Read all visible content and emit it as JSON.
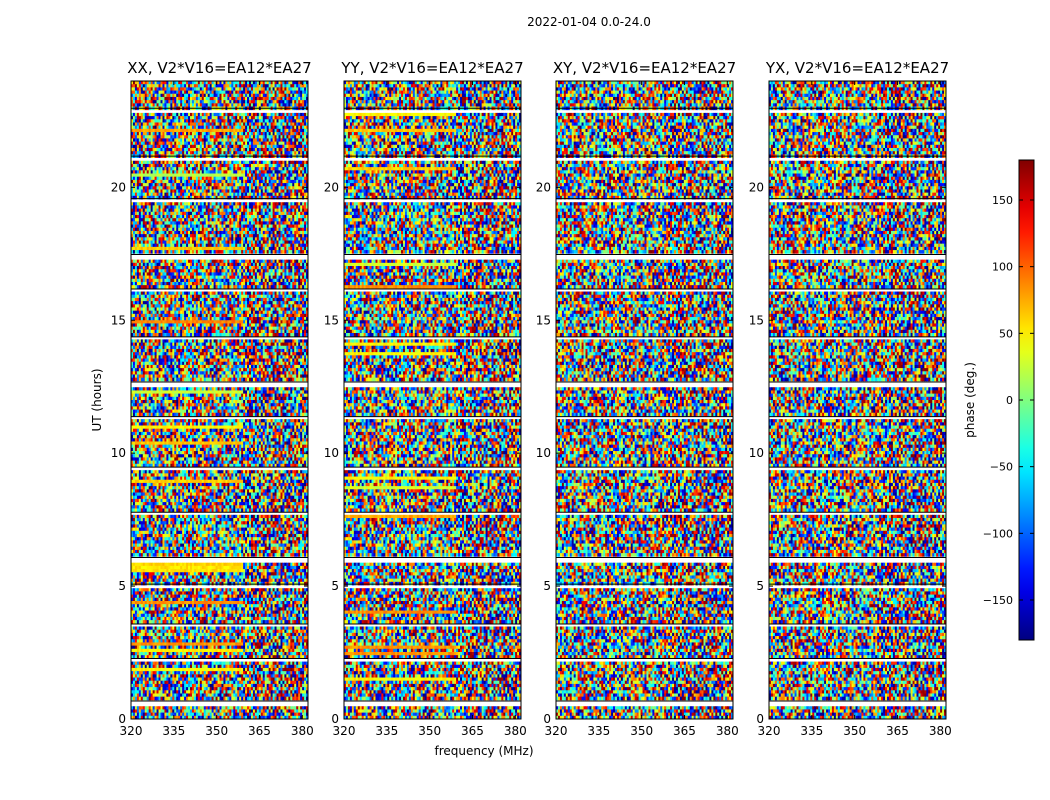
{
  "figure": {
    "suptitle": "2022-01-04 0.0-24.0",
    "xlabel": "frequency (MHz)",
    "ylabel": "UT (hours)"
  },
  "colorbar": {
    "label": "phase (deg.)",
    "range": [
      -180,
      180
    ],
    "ticks": [
      150,
      100,
      50,
      0,
      -50,
      -100,
      -150
    ],
    "tick_labels": [
      "150",
      "100",
      "50",
      "0",
      "−50",
      "−100",
      "−150"
    ],
    "colormap": "jet",
    "colors": [
      "#00007f",
      "#0000ff",
      "#007fff",
      "#00ffff",
      "#7fff7f",
      "#ffff00",
      "#ff7f00",
      "#ff0000",
      "#7f0000"
    ]
  },
  "chart_data": [
    {
      "type": "heatmap",
      "title": "XX, V2*V16=EA12*EA27",
      "xlim": [
        320,
        382
      ],
      "ylim": [
        0,
        24
      ],
      "xticks": [
        320,
        335,
        350,
        365,
        380
      ],
      "yticks": [
        0,
        5,
        10,
        15,
        20
      ],
      "xlabel": "",
      "ylabel": "UT (hours)",
      "value": "visibility phase (deg.), noise-like pattern across time and frequency"
    },
    {
      "type": "heatmap",
      "title": "YY, V2*V16=EA12*EA27",
      "xlim": [
        320,
        382
      ],
      "ylim": [
        0,
        24
      ],
      "xticks": [
        320,
        335,
        350,
        365,
        380
      ],
      "yticks": [
        0,
        5,
        10,
        15,
        20
      ],
      "xlabel": "frequency (MHz)",
      "ylabel": "",
      "value": "visibility phase (deg.), noise-like pattern across time and frequency"
    },
    {
      "type": "heatmap",
      "title": "XY, V2*V16=EA12*EA27",
      "xlim": [
        320,
        382
      ],
      "ylim": [
        0,
        24
      ],
      "xticks": [
        320,
        335,
        350,
        365,
        380
      ],
      "yticks": [
        0,
        5,
        10,
        15,
        20
      ],
      "xlabel": "",
      "ylabel": "",
      "value": "visibility phase (deg.), noise-like pattern across time and frequency"
    },
    {
      "type": "heatmap",
      "title": "YX, V2*V16=EA12*EA27",
      "xlim": [
        320,
        382
      ],
      "ylim": [
        0,
        24
      ],
      "xticks": [
        320,
        335,
        350,
        365,
        380
      ],
      "yticks": [
        0,
        5,
        10,
        15,
        20
      ],
      "xlabel": "",
      "ylabel": "",
      "value": "visibility phase (deg.), noise-like pattern across time and frequency"
    }
  ]
}
